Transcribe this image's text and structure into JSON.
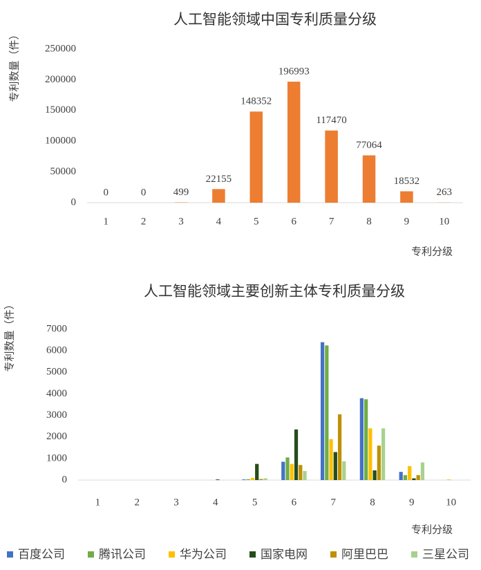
{
  "chart_data": [
    {
      "type": "bar",
      "title": "人工智能领域中国专利质量分级",
      "y_label": "专利数量（件）",
      "x_label": "专利分级",
      "categories": [
        "1",
        "2",
        "3",
        "4",
        "5",
        "6",
        "7",
        "8",
        "9",
        "10"
      ],
      "values": [
        0,
        0,
        499,
        22155,
        148352,
        196993,
        117470,
        77064,
        18532,
        263
      ],
      "color": "#ed7d31",
      "data_labels": true,
      "ylim": [
        0,
        250000
      ],
      "yticks": [
        0,
        50000,
        100000,
        150000,
        200000,
        250000
      ],
      "grid": false
    },
    {
      "type": "grouped_bar",
      "title": "人工智能领域主要创新主体专利质量分级",
      "y_label": "专利数量（件）",
      "x_label": "专利分级",
      "categories": [
        "1",
        "2",
        "3",
        "4",
        "5",
        "6",
        "7",
        "8",
        "9",
        "10"
      ],
      "series": [
        {
          "name": "百度公司",
          "color": "#4472c4",
          "values": [
            0,
            0,
            0,
            0,
            30,
            850,
            6400,
            3800,
            380,
            0
          ]
        },
        {
          "name": "腾讯公司",
          "color": "#70ad47",
          "values": [
            0,
            0,
            0,
            0,
            40,
            1050,
            6250,
            3750,
            230,
            0
          ]
        },
        {
          "name": "华为公司",
          "color": "#ffc000",
          "values": [
            0,
            0,
            0,
            0,
            100,
            750,
            1900,
            2400,
            650,
            30
          ]
        },
        {
          "name": "国家电网",
          "color": "#264d1a",
          "values": [
            0,
            0,
            0,
            30,
            750,
            2350,
            1300,
            450,
            80,
            0
          ]
        },
        {
          "name": "阿里巴巴",
          "color": "#bf9000",
          "values": [
            0,
            0,
            0,
            0,
            50,
            700,
            3050,
            1600,
            230,
            0
          ]
        },
        {
          "name": "三星公司",
          "color": "#a9d18e",
          "values": [
            0,
            0,
            0,
            0,
            80,
            420,
            870,
            2400,
            820,
            0
          ]
        }
      ],
      "ylim": [
        0,
        7000
      ],
      "yticks": [
        0,
        1000,
        2000,
        3000,
        4000,
        5000,
        6000,
        7000
      ],
      "grid": false,
      "legend": "bottom"
    }
  ]
}
